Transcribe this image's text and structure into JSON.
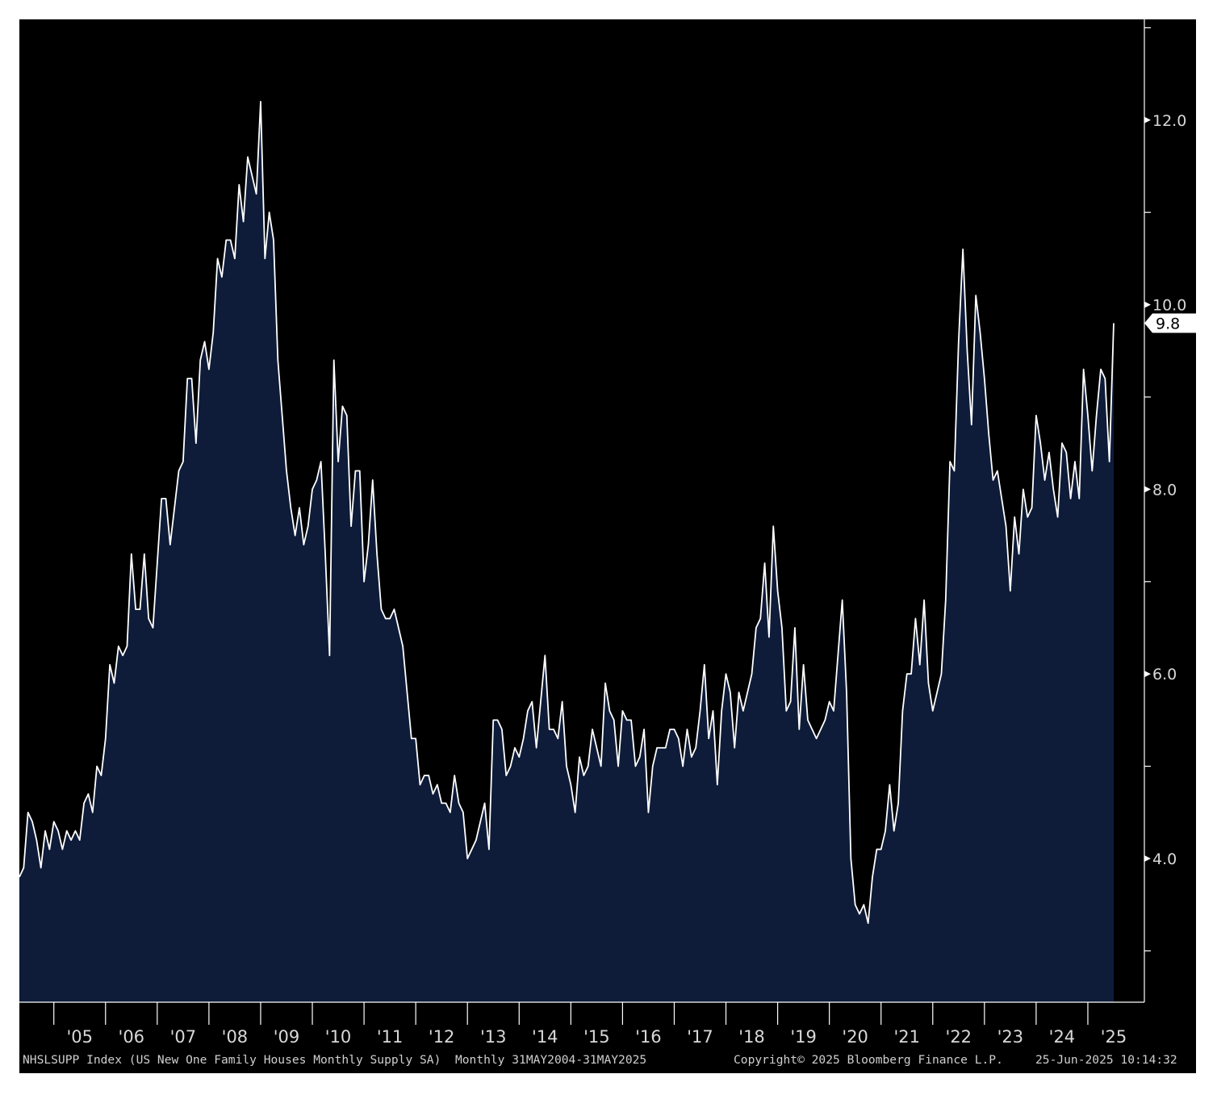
{
  "chart_data": {
    "type": "area",
    "title": "",
    "xlabel": "",
    "ylabel": "",
    "frequency": "monthly",
    "x_start": "2004-05",
    "x_end": "2025-05",
    "ylim": [
      2.5,
      13.0
    ],
    "y_ticks": [
      4.0,
      6.0,
      8.0,
      10.0,
      12.0
    ],
    "y_tick_labels": [
      "4.0",
      "6.0",
      "8.0",
      "10.0",
      "12.0"
    ],
    "year_labels": [
      "'05",
      "'06",
      "'07",
      "'08",
      "'09",
      "'10",
      "'11",
      "'12",
      "'13",
      "'14",
      "'15",
      "'16",
      "'17",
      "'18",
      "'19",
      "'20",
      "'21",
      "'22",
      "'23",
      "'24",
      "'25"
    ],
    "last_value_label": "9.8",
    "grid": false,
    "legend": "none",
    "colors": {
      "fill": "#0e1c3a",
      "line": "#ffffff",
      "background": "#000000",
      "axis": "#ffffff"
    },
    "series": [
      {
        "values": [
          3.8,
          3.9,
          4.5,
          4.4,
          4.2,
          3.9,
          4.3,
          4.1,
          4.4,
          4.3,
          4.1,
          4.3,
          4.2,
          4.3,
          4.2,
          4.6,
          4.7,
          4.5,
          5.0,
          4.9,
          5.3,
          6.1,
          5.9,
          6.3,
          6.2,
          6.3,
          7.3,
          6.7,
          6.7,
          7.3,
          6.6,
          6.5,
          7.2,
          7.9,
          7.9,
          7.4,
          7.8,
          8.2,
          8.3,
          9.2,
          9.2,
          8.5,
          9.4,
          9.6,
          9.3,
          9.7,
          10.5,
          10.3,
          10.7,
          10.7,
          10.5,
          11.3,
          10.9,
          11.6,
          11.4,
          11.2,
          12.2,
          10.5,
          11.0,
          10.7,
          9.4,
          8.8,
          8.2,
          7.8,
          7.5,
          7.8,
          7.4,
          7.6,
          8.0,
          8.1,
          8.3,
          7.3,
          6.2,
          9.4,
          8.3,
          8.9,
          8.8,
          7.6,
          8.2,
          8.2,
          7.0,
          7.4,
          8.1,
          7.3,
          6.7,
          6.6,
          6.6,
          6.7,
          6.5,
          6.3,
          5.8,
          5.3,
          5.3,
          4.8,
          4.9,
          4.9,
          4.7,
          4.8,
          4.6,
          4.6,
          4.5,
          4.9,
          4.6,
          4.5,
          4.0,
          4.1,
          4.2,
          4.4,
          4.6,
          4.1,
          5.5,
          5.5,
          5.4,
          4.9,
          5.0,
          5.2,
          5.1,
          5.3,
          5.6,
          5.7,
          5.2,
          5.7,
          6.2,
          5.4,
          5.4,
          5.3,
          5.7,
          5.0,
          4.8,
          4.5,
          5.1,
          4.9,
          5.0,
          5.4,
          5.2,
          5.0,
          5.9,
          5.6,
          5.5,
          5.0,
          5.6,
          5.5,
          5.5,
          5.0,
          5.1,
          5.4,
          4.5,
          5.0,
          5.2,
          5.2,
          5.2,
          5.4,
          5.4,
          5.3,
          5.0,
          5.4,
          5.1,
          5.2,
          5.6,
          6.1,
          5.3,
          5.6,
          4.8,
          5.6,
          6.0,
          5.8,
          5.2,
          5.8,
          5.6,
          5.8,
          6.0,
          6.5,
          6.6,
          7.2,
          6.4,
          7.6,
          6.9,
          6.5,
          5.6,
          5.7,
          6.5,
          5.4,
          6.1,
          5.5,
          5.4,
          5.3,
          5.4,
          5.5,
          5.7,
          5.6,
          6.2,
          6.8,
          5.8,
          4.0,
          3.5,
          3.4,
          3.5,
          3.3,
          3.8,
          4.1,
          4.1,
          4.3,
          4.8,
          4.3,
          4.6,
          5.6,
          6.0,
          6.0,
          6.6,
          6.1,
          6.8,
          5.9,
          5.6,
          5.8,
          6.0,
          6.8,
          8.3,
          8.2,
          9.6,
          10.6,
          9.5,
          8.7,
          10.1,
          9.7,
          9.2,
          8.6,
          8.1,
          8.2,
          7.9,
          7.6,
          6.9,
          7.7,
          7.3,
          8.0,
          7.7,
          7.8,
          8.8,
          8.5,
          8.1,
          8.4,
          8.0,
          7.7,
          8.5,
          8.4,
          7.9,
          8.3,
          7.9,
          9.3,
          8.8,
          8.2,
          8.8,
          9.3,
          9.2,
          8.3,
          9.8
        ]
      }
    ]
  },
  "footer": {
    "source": "NHSLSUPP Index (US New One Family Houses Monthly Supply SA)  Monthly 31MAY2004-31MAY2025",
    "copyright": "Copyright© 2025 Bloomberg Finance L.P.",
    "timestamp": "25-Jun-2025 10:14:32"
  }
}
